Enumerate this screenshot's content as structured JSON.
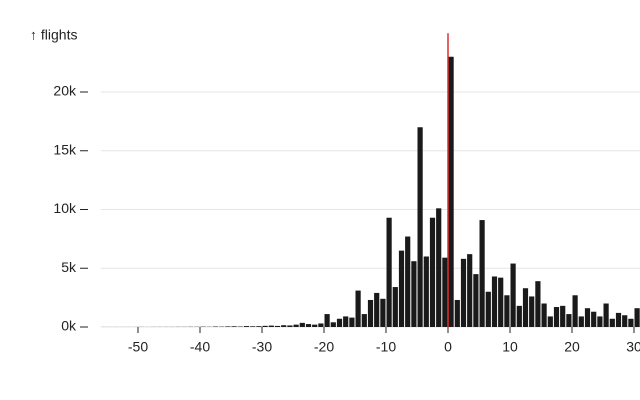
{
  "chart_data": {
    "type": "histogram",
    "y_label": "↑ flights",
    "bins": [
      -56,
      -55,
      -54,
      -53,
      -52,
      -51,
      -50,
      -49,
      -48,
      -47,
      -46,
      -45,
      -44,
      -43,
      -42,
      -41,
      -40,
      -39,
      -38,
      -37,
      -36,
      -35,
      -34,
      -33,
      -32,
      -31,
      -30,
      -29,
      -28,
      -27,
      -26,
      -25,
      -24,
      -23,
      -22,
      -21,
      -20,
      -19,
      -18,
      -17,
      -16,
      -15,
      -14,
      -13,
      -12,
      -11,
      -10,
      -9,
      -8,
      -7,
      -6,
      -5,
      -4,
      -3,
      -2,
      -1,
      0,
      1,
      2,
      3,
      4,
      5,
      6,
      7,
      8,
      9,
      10,
      11,
      12,
      13,
      14,
      15,
      16,
      17,
      18,
      19,
      20,
      21,
      22,
      23,
      24,
      25,
      26,
      27,
      28,
      29,
      30,
      31
    ],
    "values": [
      5,
      5,
      5,
      5,
      5,
      5,
      10,
      5,
      10,
      10,
      10,
      10,
      15,
      15,
      20,
      20,
      30,
      20,
      40,
      30,
      50,
      60,
      40,
      80,
      60,
      70,
      100,
      120,
      90,
      150,
      130,
      200,
      350,
      250,
      200,
      300,
      1100,
      400,
      700,
      900,
      800,
      3100,
      1100,
      2300,
      2900,
      2400,
      9300,
      3400,
      6500,
      7700,
      5600,
      17000,
      6000,
      9300,
      10100,
      5900,
      23000,
      2300,
      5800,
      6200,
      4500,
      9100,
      3000,
      4300,
      4200,
      2700,
      5400,
      1800,
      3300,
      2600,
      3900,
      2000,
      900,
      1700,
      1800,
      1100,
      2700,
      900,
      1600,
      1300,
      900,
      2000,
      700,
      1200,
      1000,
      700,
      1600
    ],
    "color": "#1a1a1a",
    "rule": {
      "x": 0,
      "color": "#e03030"
    },
    "xlim": [
      -56,
      31
    ],
    "ylim": [
      0,
      25000
    ],
    "xticks": [
      -50,
      -40,
      -30,
      -20,
      -10,
      0,
      10,
      20,
      30
    ],
    "yticks": [
      {
        "value": 0,
        "label": "0k"
      },
      {
        "value": 5000,
        "label": "5k"
      },
      {
        "value": 10000,
        "label": "10k"
      },
      {
        "value": 15000,
        "label": "15k"
      },
      {
        "value": 20000,
        "label": "20k"
      }
    ],
    "grid": true
  }
}
